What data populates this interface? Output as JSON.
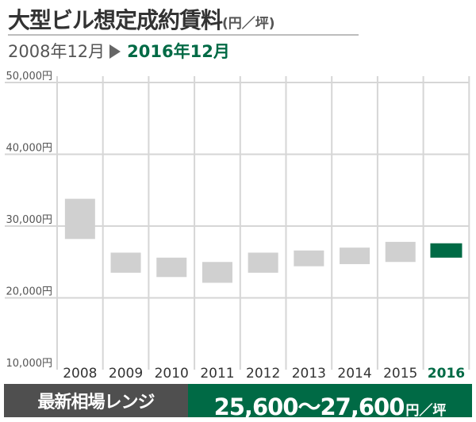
{
  "header": {
    "title": "大型ビル想定成約賃料",
    "title_unit": "(円／坪)",
    "period_from": "2008年12月",
    "period_to": "2016年12月"
  },
  "footer": {
    "label": "最新相場レンジ",
    "range": "25,600〜27,600",
    "unit": "円／坪"
  },
  "colors": {
    "accent": "#006a45",
    "bar": "#d0d0d0",
    "footer_label_bg": "#4f4f4f"
  },
  "chart_data": {
    "type": "bar",
    "subtype": "floating-range",
    "categories": [
      "2008",
      "2009",
      "2010",
      "2011",
      "2012",
      "2013",
      "2014",
      "2015",
      "2016"
    ],
    "series": [
      {
        "low": [
          28200,
          23500,
          22900,
          22100,
          23500,
          24400,
          24700,
          25000,
          25600
        ],
        "high": [
          33800,
          26300,
          25600,
          25000,
          26300,
          26600,
          27000,
          27800,
          27600
        ]
      }
    ],
    "highlight_category": "2016",
    "ylim": [
      10000,
      50000
    ],
    "yticks": [
      10000,
      20000,
      30000,
      40000,
      50000
    ],
    "ytick_labels": [
      "10,000円",
      "20,000円",
      "30,000円",
      "40,000円",
      "50,000円"
    ],
    "grid": true
  }
}
